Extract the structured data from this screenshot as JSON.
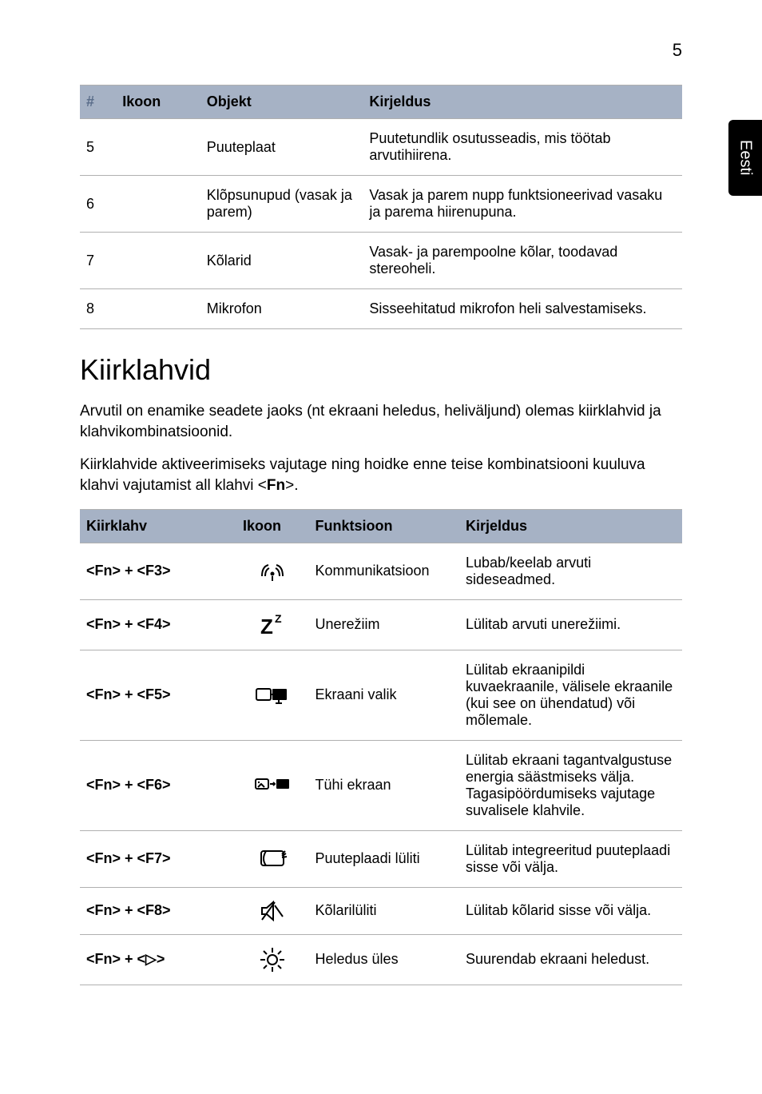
{
  "page_number": "5",
  "side_tab": "Eesti",
  "colors": {
    "header_bg": "#a6b2c5",
    "border": "#b0b0b0",
    "text": "#000000",
    "accent_hash": "#5a6d8a"
  },
  "table1": {
    "headers": {
      "num": "#",
      "ikoon": "Ikoon",
      "objekt": "Objekt",
      "kirjeldus": "Kirjeldus"
    },
    "rows": [
      {
        "num": "5",
        "ikoon": "",
        "objekt": "Puuteplaat",
        "kirjeldus": "Puutetundlik osutusseadis, mis töötab arvutihiirena."
      },
      {
        "num": "6",
        "ikoon": "",
        "objekt": "Klõpsunupud (vasak ja parem)",
        "kirjeldus": "Vasak ja parem nupp funktsioneerivad vasaku ja parema hiirenupuna."
      },
      {
        "num": "7",
        "ikoon": "",
        "objekt": "Kõlarid",
        "kirjeldus": "Vasak- ja parempoolne kõlar, toodavad stereoheli."
      },
      {
        "num": "8",
        "ikoon": "",
        "objekt": "Mikrofon",
        "kirjeldus": "Sisseehitatud mikrofon heli salvestamiseks."
      }
    ]
  },
  "section_title": "Kiirklahvid",
  "para1_a": "Arvutil on enamike seadete jaoks (nt ekraani heledus, heliväljund) olemas kiirklahvid ja klahvikombinatsioonid.",
  "para2_a": "Kiirklahvide aktiveerimiseks vajutage ning hoidke enne teise kombinatsiooni kuuluva klahvi vajutamist all klahvi <",
  "para2_b": "Fn",
  "para2_c": ">.",
  "table2": {
    "headers": {
      "kiirklahv": "Kiirklahv",
      "ikoon": "Ikoon",
      "funktsioon": "Funktsioon",
      "kirjeldus": "Kirjeldus"
    },
    "rows": [
      {
        "k": "<Fn> + <F3>",
        "icon": "wireless",
        "f": "Kommunikatsioon",
        "d": "Lubab/keelab arvuti sideseadmed."
      },
      {
        "k": "<Fn> + <F4>",
        "icon": "sleep",
        "f": "Unerežiim",
        "d": "Lülitab arvuti unerežiimi."
      },
      {
        "k": "<Fn> + <F5>",
        "icon": "display",
        "f": "Ekraani valik",
        "d": "Lülitab ekraanipildi kuvaekraanile, välisele ekraanile (kui see on ühendatud) või mõlemale."
      },
      {
        "k": "<Fn> + <F6>",
        "icon": "blank",
        "f": "Tühi ekraan",
        "d": "Lülitab ekraani tagantvalgustuse energia säästmiseks välja. Tagasipöördumiseks vajutage suvalisele klahvile."
      },
      {
        "k": "<Fn> + <F7>",
        "icon": "touchpad",
        "f": "Puuteplaadi lüliti",
        "d": "Lülitab integreeritud puuteplaadi sisse või välja."
      },
      {
        "k": "<Fn> + <F8>",
        "icon": "mute",
        "f": "Kõlarilüliti",
        "d": "Lülitab kõlarid sisse või välja."
      },
      {
        "k": "<Fn> + <▷>",
        "icon": "bright",
        "f": "Heledus üles",
        "d": "Suurendab ekraani heledust."
      }
    ]
  }
}
